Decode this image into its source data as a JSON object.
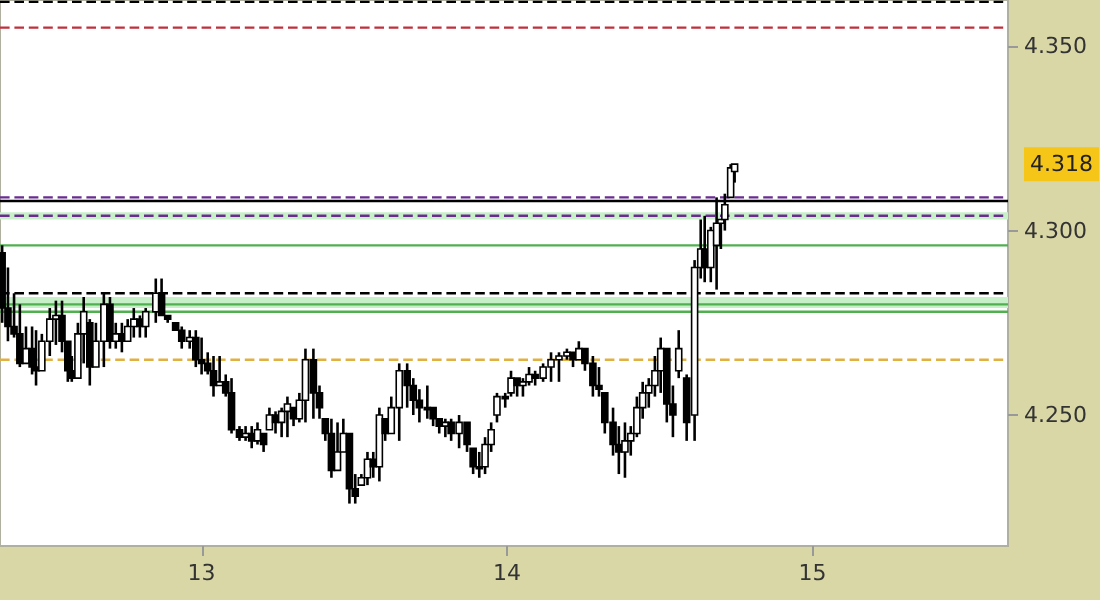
{
  "chart_data": {
    "type": "candlestick",
    "x": [
      12.347,
      12.366,
      12.386,
      12.405,
      12.425,
      12.445,
      12.458,
      12.477,
      12.503,
      12.523,
      12.543,
      12.562,
      12.575,
      12.595,
      12.614,
      12.634,
      12.654,
      12.68,
      12.7,
      12.719,
      12.739,
      12.758,
      12.778,
      12.798,
      12.817,
      12.85,
      12.869,
      12.889,
      12.915,
      12.935,
      12.961,
      12.981,
      13.0,
      13.02,
      13.039,
      13.059,
      13.079,
      13.098,
      13.124,
      13.144,
      13.164,
      13.183,
      13.203,
      13.222,
      13.242,
      13.262,
      13.281,
      13.301,
      13.32,
      13.34,
      13.366,
      13.386,
      13.405,
      13.425,
      13.445,
      13.464,
      13.484,
      13.503,
      13.523,
      13.543,
      13.562,
      13.582,
      13.601,
      13.621,
      13.647,
      13.673,
      13.693,
      13.713,
      13.739,
      13.758,
      13.778,
      13.798,
      13.817,
      13.843,
      13.869,
      13.889,
      13.909,
      13.928,
      13.948,
      13.967,
      13.994,
      14.013,
      14.033,
      14.052,
      14.072,
      14.092,
      14.118,
      14.144,
      14.17,
      14.196,
      14.216,
      14.235,
      14.255,
      14.281,
      14.301,
      14.32,
      14.347,
      14.366,
      14.386,
      14.405,
      14.425,
      14.444,
      14.464,
      14.484,
      14.503,
      14.523,
      14.543,
      14.562,
      14.588,
      14.614,
      14.634,
      14.647,
      14.667,
      14.686,
      14.7,
      14.713,
      14.732,
      14.745
    ],
    "ohlc": [
      [
        4.294,
        4.296,
        4.275,
        4.279
      ],
      [
        4.279,
        4.29,
        4.27,
        4.274
      ],
      [
        4.274,
        4.283,
        4.271,
        4.272
      ],
      [
        4.272,
        4.28,
        4.263,
        4.264
      ],
      [
        4.264,
        4.274,
        4.264,
        4.268
      ],
      [
        4.268,
        4.274,
        4.261,
        4.263
      ],
      [
        4.263,
        4.273,
        4.258,
        4.262
      ],
      [
        4.262,
        4.272,
        4.262,
        4.27
      ],
      [
        4.27,
        4.279,
        4.266,
        4.276
      ],
      [
        4.276,
        4.281,
        4.269,
        4.277
      ],
      [
        4.277,
        4.281,
        4.267,
        4.27
      ],
      [
        4.27,
        4.27,
        4.259,
        4.262
      ],
      [
        4.262,
        4.266,
        4.259,
        4.26
      ],
      [
        4.26,
        4.275,
        4.26,
        4.272
      ],
      [
        4.272,
        4.282,
        4.264,
        4.278
      ],
      [
        4.275,
        4.276,
        4.258,
        4.263
      ],
      [
        4.263,
        4.275,
        4.263,
        4.27
      ],
      [
        4.27,
        4.283,
        4.263,
        4.28
      ],
      [
        4.28,
        4.282,
        4.268,
        4.27
      ],
      [
        4.27,
        4.275,
        4.268,
        4.272
      ],
      [
        4.272,
        4.275,
        4.267,
        4.27
      ],
      [
        4.27,
        4.276,
        4.27,
        4.274
      ],
      [
        4.274,
        4.279,
        4.271,
        4.276
      ],
      [
        4.276,
        4.277,
        4.271,
        4.274
      ],
      [
        4.274,
        4.279,
        4.271,
        4.278
      ],
      [
        4.278,
        4.287,
        4.275,
        4.283
      ],
      [
        4.283,
        4.287,
        4.277,
        4.277
      ],
      [
        4.277,
        4.277,
        4.275,
        4.276
      ],
      [
        4.275,
        4.275,
        4.273,
        4.273
      ],
      [
        4.273,
        4.274,
        4.268,
        4.27
      ],
      [
        4.27,
        4.273,
        4.268,
        4.271
      ],
      [
        4.271,
        4.273,
        4.263,
        4.265
      ],
      [
        4.265,
        4.271,
        4.261,
        4.264
      ],
      [
        4.264,
        4.267,
        4.261,
        4.262
      ],
      [
        4.262,
        4.266,
        4.255,
        4.258
      ],
      [
        4.258,
        4.266,
        4.258,
        4.259
      ],
      [
        4.259,
        4.261,
        4.255,
        4.256
      ],
      [
        4.256,
        4.26,
        4.245,
        4.246
      ],
      [
        4.246,
        4.247,
        4.243,
        4.244
      ],
      [
        4.244,
        4.247,
        4.243,
        4.245
      ],
      [
        4.245,
        4.247,
        4.241,
        4.243
      ],
      [
        4.243,
        4.248,
        4.242,
        4.246
      ],
      [
        4.245,
        4.245,
        4.24,
        4.242
      ],
      [
        4.246,
        4.252,
        4.246,
        4.25
      ],
      [
        4.25,
        4.251,
        4.245,
        4.248
      ],
      [
        4.248,
        4.252,
        4.244,
        4.251
      ],
      [
        4.251,
        4.255,
        4.244,
        4.253
      ],
      [
        4.252,
        4.252,
        4.247,
        4.249
      ],
      [
        4.249,
        4.256,
        4.248,
        4.254
      ],
      [
        4.254,
        4.268,
        4.248,
        4.265
      ],
      [
        4.265,
        4.268,
        4.249,
        4.256
      ],
      [
        4.256,
        4.258,
        4.249,
        4.252
      ],
      [
        4.249,
        4.249,
        4.243,
        4.245
      ],
      [
        4.245,
        4.249,
        4.233,
        4.235
      ],
      [
        4.235,
        4.248,
        4.235,
        4.24
      ],
      [
        4.24,
        4.249,
        4.24,
        4.245
      ],
      [
        4.245,
        4.245,
        4.226,
        4.23
      ],
      [
        4.23,
        4.234,
        4.226,
        4.228
      ],
      [
        4.231,
        4.234,
        4.231,
        4.233
      ],
      [
        4.233,
        4.24,
        4.231,
        4.238
      ],
      [
        4.238,
        4.24,
        4.233,
        4.236
      ],
      [
        4.236,
        4.252,
        4.232,
        4.25
      ],
      [
        4.249,
        4.249,
        4.243,
        4.245
      ],
      [
        4.245,
        4.255,
        4.245,
        4.252
      ],
      [
        4.252,
        4.264,
        4.243,
        4.262
      ],
      [
        4.262,
        4.264,
        4.252,
        4.258
      ],
      [
        4.258,
        4.26,
        4.25,
        4.254
      ],
      [
        4.254,
        4.257,
        4.248,
        4.252
      ],
      [
        4.252,
        4.258,
        4.249,
        4.252
      ],
      [
        4.252,
        4.252,
        4.247,
        4.249
      ],
      [
        4.249,
        4.249,
        4.245,
        4.247
      ],
      [
        4.247,
        4.249,
        4.244,
        4.248
      ],
      [
        4.248,
        4.249,
        4.243,
        4.245
      ],
      [
        4.245,
        4.25,
        4.241,
        4.248
      ],
      [
        4.248,
        4.248,
        4.24,
        4.242
      ],
      [
        4.241,
        4.241,
        4.234,
        4.236
      ],
      [
        4.236,
        4.24,
        4.233,
        4.236
      ],
      [
        4.236,
        4.244,
        4.234,
        4.242
      ],
      [
        4.242,
        4.248,
        4.24,
        4.246
      ],
      [
        4.25,
        4.256,
        4.248,
        4.255
      ],
      [
        4.255,
        4.256,
        4.252,
        4.255
      ],
      [
        4.256,
        4.262,
        4.255,
        4.26
      ],
      [
        4.26,
        4.26,
        4.255,
        4.258
      ],
      [
        4.258,
        4.26,
        4.255,
        4.259
      ],
      [
        4.259,
        4.263,
        4.258,
        4.261
      ],
      [
        4.261,
        4.262,
        4.258,
        4.26
      ],
      [
        4.26,
        4.264,
        4.259,
        4.263
      ],
      [
        4.263,
        4.267,
        4.259,
        4.265
      ],
      [
        4.265,
        4.267,
        4.259,
        4.266
      ],
      [
        4.266,
        4.268,
        4.265,
        4.267
      ],
      [
        4.267,
        4.267,
        4.263,
        4.265
      ],
      [
        4.265,
        4.27,
        4.265,
        4.268
      ],
      [
        4.268,
        4.268,
        4.262,
        4.264
      ],
      [
        4.264,
        4.266,
        4.255,
        4.258
      ],
      [
        4.258,
        4.263,
        4.255,
        4.257
      ],
      [
        4.256,
        4.256,
        4.245,
        4.248
      ],
      [
        4.248,
        4.252,
        4.239,
        4.242
      ],
      [
        4.242,
        4.247,
        4.234,
        4.24
      ],
      [
        4.24,
        4.248,
        4.233,
        4.243
      ],
      [
        4.243,
        4.247,
        4.239,
        4.245
      ],
      [
        4.245,
        4.255,
        4.244,
        4.252
      ],
      [
        4.252,
        4.259,
        4.249,
        4.256
      ],
      [
        4.256,
        4.26,
        4.252,
        4.258
      ],
      [
        4.258,
        4.266,
        4.255,
        4.262
      ],
      [
        4.262,
        4.271,
        4.256,
        4.268
      ],
      [
        4.268,
        4.268,
        4.248,
        4.253
      ],
      [
        4.253,
        4.258,
        4.244,
        4.25
      ],
      [
        4.262,
        4.273,
        4.26,
        4.268
      ],
      [
        4.26,
        4.261,
        4.243,
        4.248
      ],
      [
        4.25,
        4.292,
        4.243,
        4.29
      ],
      [
        4.29,
        4.303,
        4.287,
        4.295
      ],
      [
        4.295,
        4.304,
        4.286,
        4.29
      ],
      [
        4.29,
        4.301,
        4.286,
        4.3
      ],
      [
        4.296,
        4.309,
        4.284,
        4.302
      ],
      [
        4.302,
        4.303,
        4.295,
        4.303
      ],
      [
        4.303,
        4.31,
        4.3,
        4.307
      ],
      [
        4.309,
        4.318,
        4.309,
        4.317
      ],
      [
        4.316,
        4.318,
        4.313,
        4.318
      ]
    ],
    "color": "#000000",
    "xlim": [
      12.34,
      15.64
    ],
    "xticks": [
      13,
      14,
      15
    ],
    "ylim": [
      4.2145,
      4.3625
    ],
    "yticks": [
      {
        "value": 4.25,
        "label": "4.250"
      },
      {
        "value": 4.3,
        "label": "4.300"
      },
      {
        "value": 4.35,
        "label": "4.350"
      }
    ],
    "ref_lines": [
      {
        "axis": "y",
        "value": 4.362,
        "color": "#000000",
        "line_style": "dashed"
      },
      {
        "axis": "y",
        "value": 4.355,
        "color": "#c0303c",
        "line_style": "dashed"
      },
      {
        "axis": "y",
        "value": 4.309,
        "color": "#6a2c91",
        "line_style": "dashed"
      },
      {
        "axis": "y",
        "value": 4.308,
        "color": "#000000",
        "line_style": "solid"
      },
      {
        "axis": "y",
        "value": 4.304,
        "color": "#6a2c91",
        "line_style": "dashed"
      },
      {
        "axis": "y",
        "value": 4.296,
        "color": "#50b050",
        "line_style": "solid"
      },
      {
        "axis": "y",
        "value": 4.283,
        "color": "#000000",
        "line_style": "dashed"
      },
      {
        "axis": "y",
        "value": 4.28,
        "color": "#50b050",
        "line_style": "solid"
      },
      {
        "axis": "y",
        "value": 4.278,
        "color": "#50b050",
        "line_style": "solid"
      },
      {
        "axis": "y",
        "value": 4.265,
        "color": "#e0b040",
        "line_style": "dashed"
      }
    ],
    "bands": [
      {
        "axis": "y",
        "from": 4.303,
        "to": 4.305,
        "color": "#c8f0c8"
      },
      {
        "axis": "y",
        "from": 4.279,
        "to": 4.282,
        "color": "#c8f0c8"
      }
    ],
    "annotations": [
      "4.318"
    ],
    "grid": false
  }
}
